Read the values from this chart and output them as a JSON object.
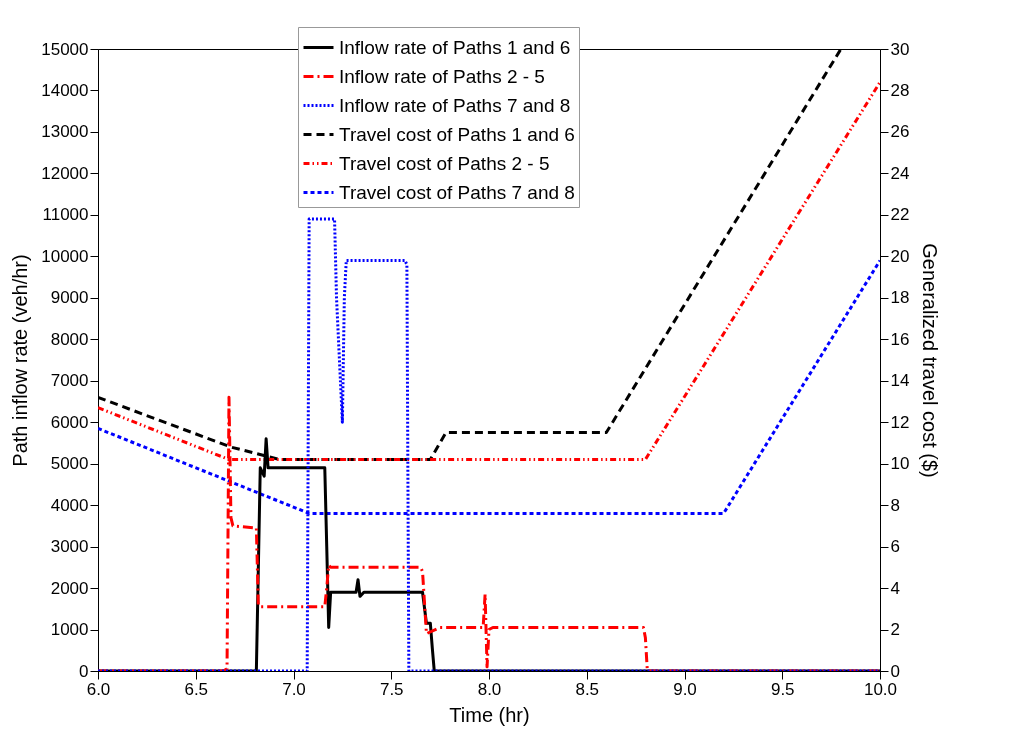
{
  "chart_data": {
    "type": "line",
    "xlabel": "Time (hr)",
    "ylabel": "Path inflow rate (veh/hr)",
    "y2label": "Generalized travel cost ($)",
    "xlim": [
      6,
      10
    ],
    "xticks": [
      {
        "value": 6,
        "label": "6.0"
      },
      {
        "value": 6.5,
        "label": "6.5"
      },
      {
        "value": 7,
        "label": "7.0"
      },
      {
        "value": 7.5,
        "label": "7.5"
      },
      {
        "value": 8,
        "label": "8.0"
      },
      {
        "value": 8.5,
        "label": "8.5"
      },
      {
        "value": 9,
        "label": "9.0"
      },
      {
        "value": 9.5,
        "label": "9.5"
      },
      {
        "value": 10,
        "label": "10.0"
      }
    ],
    "ylim": [
      0,
      15000
    ],
    "yticks": [
      0,
      1000,
      2000,
      3000,
      4000,
      5000,
      6000,
      7000,
      8000,
      9000,
      10000,
      11000,
      12000,
      13000,
      14000,
      15000
    ],
    "y2lim": [
      0,
      30
    ],
    "y2ticks": [
      0,
      2,
      4,
      6,
      8,
      10,
      12,
      14,
      16,
      18,
      20,
      22,
      24,
      26,
      28,
      30
    ],
    "grid": false,
    "legend": "top",
    "marker": "none",
    "series": [
      {
        "name": "Inflow rate of Paths 1 and 6",
        "color": "#000000",
        "line_style": "solid",
        "x": [
          6.0,
          6.81,
          6.83,
          6.85,
          6.86,
          6.87,
          6.9,
          7.16,
          7.17,
          7.18,
          7.19,
          7.3,
          7.32,
          7.33,
          7.34,
          7.36,
          7.66,
          7.68,
          7.7,
          7.71,
          7.72,
          10.0
        ],
        "values": [
          0,
          0,
          4900,
          4700,
          5600,
          4900,
          4900,
          4900,
          3000,
          1050,
          1900,
          1900,
          1900,
          2200,
          1800,
          1900,
          1900,
          1150,
          1150,
          550,
          0,
          0
        ]
      },
      {
        "name": "Inflow rate of Paths 2 - 5",
        "color": "#ff0000",
        "line_style": "dashdot",
        "x": [
          6.0,
          6.64,
          6.66,
          6.67,
          6.68,
          6.69,
          6.81,
          6.82,
          6.83,
          6.84,
          7.16,
          7.17,
          7.18,
          7.19,
          7.65,
          7.66,
          7.68,
          7.75,
          7.97,
          7.98,
          7.99,
          8.0,
          8.02,
          8.79,
          8.8,
          8.81,
          10.0
        ],
        "values": [
          0,
          0,
          50,
          6600,
          3700,
          3500,
          3450,
          1600,
          1550,
          1550,
          1550,
          2000,
          2550,
          2500,
          2500,
          2400,
          900,
          1050,
          1050,
          1850,
          100,
          1000,
          1050,
          1050,
          800,
          0,
          0
        ]
      },
      {
        "name": "Inflow rate of Paths 7 and 8",
        "color": "#0000ff",
        "line_style": "dotted",
        "x": [
          6.0,
          7.07,
          7.08,
          7.21,
          7.22,
          7.25,
          7.26,
          7.27,
          7.57,
          7.58,
          7.59,
          10.0
        ],
        "values": [
          0,
          0,
          10900,
          10900,
          9000,
          6000,
          9000,
          9900,
          9900,
          9800,
          0,
          0
        ]
      },
      {
        "name": "Travel cost of Paths 1 and 6",
        "color": "#000000",
        "line_style": "dashed",
        "axis": "y2",
        "x": [
          6.0,
          6.68,
          6.93,
          7.7,
          7.78,
          8.6,
          9.8
        ],
        "values": [
          13.2,
          10.8,
          10.2,
          10.2,
          11.5,
          11.5,
          30
        ]
      },
      {
        "name": "Travel cost of Paths 2 - 5",
        "color": "#ff0000",
        "line_style": "dashdotdot",
        "axis": "y2",
        "x": [
          6.0,
          6.67,
          8.8,
          10.0
        ],
        "values": [
          12.7,
          10.2,
          10.2,
          28.4
        ]
      },
      {
        "name": "Travel cost of Paths 7 and 8",
        "color": "#0000ff",
        "line_style": "shortdash",
        "axis": "y2",
        "x": [
          6.0,
          7.08,
          9.2,
          10.0
        ],
        "values": [
          11.7,
          7.6,
          7.6,
          19.8
        ]
      }
    ]
  }
}
